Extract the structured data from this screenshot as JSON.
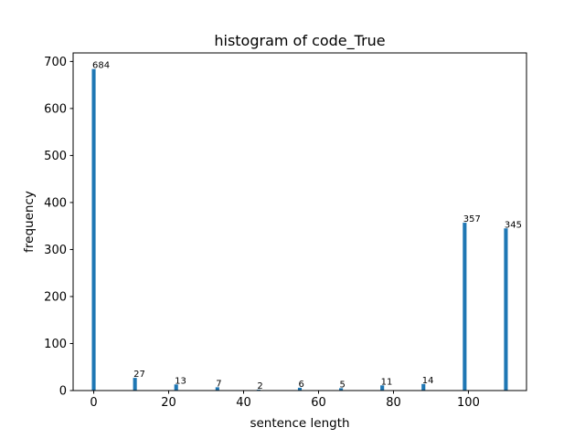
{
  "chart_data": {
    "type": "bar",
    "title": "histogram of code_True",
    "xlabel": "sentence length",
    "ylabel": "frequency",
    "bar_color": "#1f77b4",
    "xlim": [
      -5.5,
      115.5
    ],
    "ylim": [
      0,
      718.2
    ],
    "xticks": [
      0,
      20,
      40,
      60,
      80,
      100
    ],
    "yticks": [
      0,
      100,
      200,
      300,
      400,
      500,
      600,
      700
    ],
    "bar_width": 1,
    "x": [
      0,
      11,
      22,
      33,
      44,
      55,
      66,
      77,
      88,
      99,
      110
    ],
    "values": [
      684,
      27,
      13,
      7,
      2,
      6,
      5,
      11,
      14,
      357,
      345
    ],
    "data_labels": [
      "684",
      "27",
      "13",
      "7",
      "2",
      "6",
      "5",
      "11",
      "14",
      "357",
      "345"
    ],
    "grid": false,
    "legend": "none"
  }
}
